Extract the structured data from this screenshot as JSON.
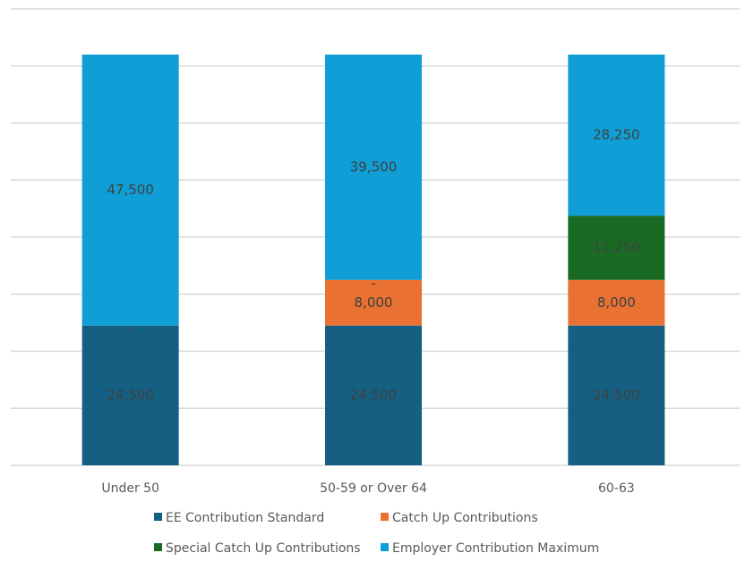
{
  "chart_data": {
    "type": "bar",
    "stacked": true,
    "categories": [
      "Under 50",
      "50-59 or Over 64",
      "60-63"
    ],
    "series": [
      {
        "name": "EE Contribution Standard",
        "color": "#156082",
        "values": [
          24500,
          24500,
          24500
        ],
        "labels": [
          "24,500",
          "24,500",
          "24,500"
        ]
      },
      {
        "name": "Catch Up Contributions",
        "color": "#E97132",
        "values": [
          0,
          8000,
          8000
        ],
        "labels": [
          "-",
          "8,000",
          "8,000"
        ]
      },
      {
        "name": "Special Catch Up Contributions",
        "color": "#196B24",
        "values": [
          0,
          0,
          11250
        ],
        "labels": [
          "-",
          "-",
          "11,250"
        ]
      },
      {
        "name": "Employer Contribution Maximum",
        "color": "#0F9ED5",
        "values": [
          47500,
          39500,
          28250
        ],
        "labels": [
          "47,500",
          "39,500",
          "28,250"
        ]
      }
    ],
    "ylim": [
      0,
      80000
    ],
    "ytick_step": 10000,
    "grid": true,
    "legend_position": "bottom"
  }
}
